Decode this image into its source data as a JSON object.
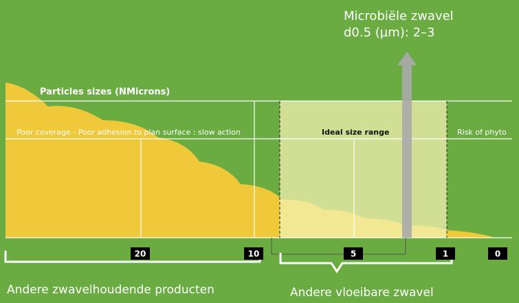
{
  "callout": {
    "lines": [
      "Microbiële zwavel",
      "d0.5 (µm): 2–3"
    ]
  },
  "header": {
    "title": "Particles sizes (NMicrons)"
  },
  "zones": {
    "poor": "Poor coverage - Poor adhesion to plan surface : slow action",
    "ideal": "Ideal size range",
    "risk": "Risk of phyto"
  },
  "ticks": [
    "20",
    "10",
    "5",
    "1",
    "0"
  ],
  "groups": {
    "left": "Andere zwavelhoudende producten",
    "right": "Andere vloeibare zwavel"
  }
}
